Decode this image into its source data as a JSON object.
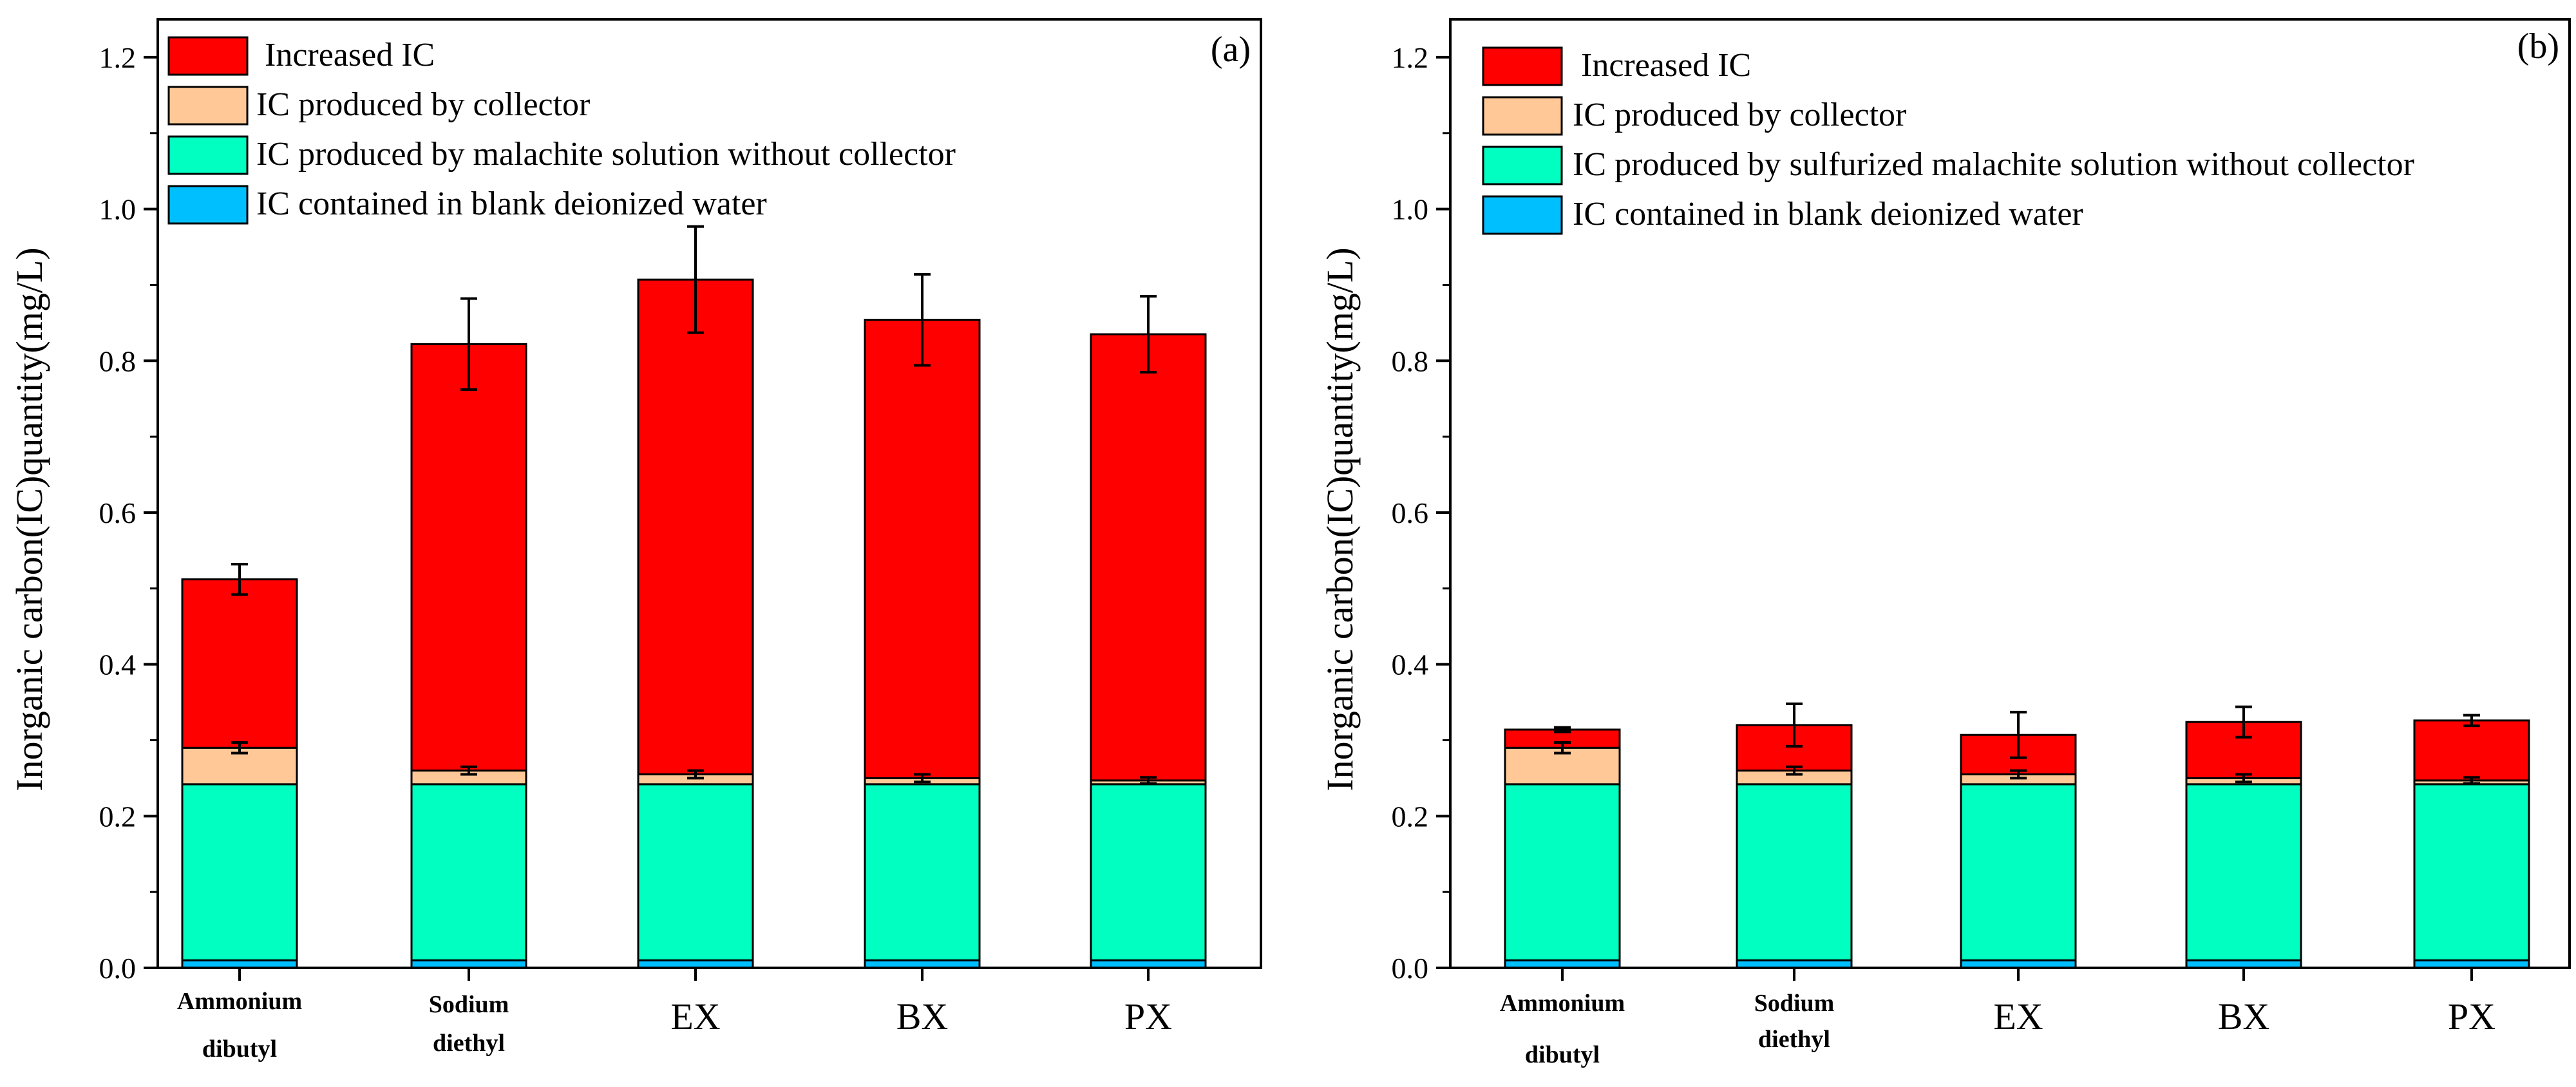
{
  "chart_data": [
    {
      "panel": "(a)",
      "type": "stacked-bar",
      "ylabel": "Inorganic carbon(IC)quantity(mg/L)",
      "ylim": [
        0,
        1.25
      ],
      "yticks": [
        "0.0",
        "0.2",
        "0.4",
        "0.6",
        "0.8",
        "1.0",
        "1.2"
      ],
      "categories": [
        {
          "lines": [
            "Ammonium",
            "dibutyl"
          ],
          "style": "bold"
        },
        {
          "lines": [
            "Sodium",
            "diethyl"
          ],
          "style": "bold"
        },
        {
          "lines": [
            "EX"
          ],
          "style": "big"
        },
        {
          "lines": [
            "BX"
          ],
          "style": "big"
        },
        {
          "lines": [
            "PX"
          ],
          "style": "big"
        }
      ],
      "series": [
        {
          "name": "IC contained in blank deionized water",
          "color": "#00bfff",
          "values": [
            0.01,
            0.01,
            0.01,
            0.01,
            0.01
          ]
        },
        {
          "name": "IC produced by malachite solution without collector",
          "color": "#00ffc0",
          "values": [
            0.232,
            0.232,
            0.232,
            0.232,
            0.232
          ]
        },
        {
          "name": "IC produced by collector",
          "color": "#ffc896",
          "values": [
            0.048,
            0.018,
            0.013,
            0.008,
            0.005
          ]
        },
        {
          "name": "Increased IC",
          "color": "#ff0000",
          "values": [
            0.222,
            0.562,
            0.652,
            0.604,
            0.588
          ]
        }
      ],
      "error_bars": [
        {
          "series": "IC produced by collector",
          "errors": [
            0.007,
            0.005,
            0.005,
            0.005,
            0.004
          ]
        },
        {
          "series": "Increased IC",
          "errors": [
            0.02,
            0.06,
            0.07,
            0.06,
            0.05
          ]
        }
      ],
      "legend": {
        "position": "top-left",
        "order": [
          "Increased IC",
          "IC produced by collector",
          "IC produced by malachite solution without collector",
          "IC contained in blank deionized water"
        ]
      }
    },
    {
      "panel": "(b)",
      "type": "stacked-bar",
      "ylabel": "Inorganic carbon(IC)quantity(mg/L)",
      "ylim": [
        0,
        1.25
      ],
      "yticks": [
        "0.0",
        "0.2",
        "0.4",
        "0.6",
        "0.8",
        "1.0",
        "1.2"
      ],
      "categories": [
        {
          "lines": [
            "Ammonium",
            "dibutyl"
          ],
          "style": "bold"
        },
        {
          "lines": [
            "Sodium",
            "diethyl"
          ],
          "style": "bold"
        },
        {
          "lines": [
            "EX"
          ],
          "style": "big"
        },
        {
          "lines": [
            "BX"
          ],
          "style": "big"
        },
        {
          "lines": [
            "PX"
          ],
          "style": "big"
        }
      ],
      "series": [
        {
          "name": "IC contained in blank deionized water",
          "color": "#00bfff",
          "values": [
            0.01,
            0.01,
            0.01,
            0.01,
            0.01
          ]
        },
        {
          "name": "IC produced by sulfurized malachite solution without collector",
          "color": "#00ffc0",
          "values": [
            0.232,
            0.232,
            0.232,
            0.232,
            0.232
          ]
        },
        {
          "name": "IC produced by collector",
          "color": "#ffc896",
          "values": [
            0.048,
            0.018,
            0.013,
            0.008,
            0.005
          ]
        },
        {
          "name": "Increased IC",
          "color": "#ff0000",
          "values": [
            0.024,
            0.06,
            0.052,
            0.074,
            0.079
          ]
        }
      ],
      "error_bars": [
        {
          "series": "IC produced by collector",
          "errors": [
            0.007,
            0.005,
            0.005,
            0.005,
            0.004
          ]
        },
        {
          "series": "Increased IC",
          "errors": [
            0.003,
            0.028,
            0.03,
            0.02,
            0.007
          ]
        }
      ],
      "legend": {
        "position": "top-left",
        "order": [
          "Increased IC",
          "IC produced by collector",
          "IC produced by sulfurized malachite solution without collector",
          "IC contained in blank deionized water"
        ]
      }
    }
  ]
}
